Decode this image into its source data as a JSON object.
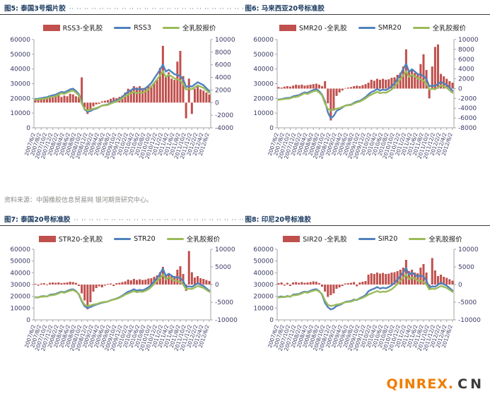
{
  "headers": {
    "fig5": "图5: 泰国3号烟片胶",
    "fig6": "图6: 马来西亚20号标准胶",
    "fig7": "图7: 泰国20号标准胶",
    "fig8": "图8: 印尼20号标准胶",
    "leader": "·· ·· ·· ·· ·· ·· ·· ·· ·· ·· ·· ·· ·· ·· ·· ·· ·· ·· ·· ·· ·· ·· ·· ·· ·· ·· ··"
  },
  "source_note": "资料来源：中国橡胶信息贸易网  银河期货研究中心。",
  "watermark": {
    "brand": "QINREX.",
    "suffix": "CN",
    "brand_color": "#F07D00",
    "suffix_color": "#3a3a3a"
  },
  "colors": {
    "bar": "#C0504D",
    "line_blue": "#4F81BD",
    "line_green": "#9BBB59",
    "title": "#17375D",
    "axis_text": "#3A3A66",
    "axis_line": "#A6A6A6"
  },
  "chart_data": [
    {
      "type": "bar",
      "title": "图5: 泰国3号烟片胶",
      "legend_position": "top",
      "tick_every": 2,
      "x_ticks": [
        "2007/6/2",
        "2007/8/2",
        "2007/10/2",
        "2007/12/2",
        "2008/2/2",
        "2008/4/2",
        "2008/6/2",
        "2008/8/2",
        "2008/10/2",
        "2008/12/2",
        "2009/2/2",
        "2009/4/2",
        "2009/6/2",
        "2009/8/2",
        "2009/10/2",
        "2009/12/2",
        "2010/2/2",
        "2010/4/2",
        "2010/6/2",
        "2010/8/2",
        "2010/10/2",
        "2010/12/2",
        "2011/2/2",
        "2011/4/2",
        "2011/6/2",
        "2011/8/2",
        "2011/10/2",
        "2011/12/2",
        "2012/2/2",
        "2012/4/2",
        "2012/6/2"
      ],
      "left_axis": {
        "min": 0,
        "max": 60000,
        "step": 10000
      },
      "right_axis": {
        "min": -4000,
        "max": 10000,
        "step": 2000
      },
      "series": [
        {
          "name": "RSS3-全乳胶",
          "type": "bar",
          "axis": "right",
          "values": [
            600,
            400,
            500,
            900,
            700,
            800,
            1200,
            1000,
            1200,
            900,
            1100,
            1000,
            1400,
            1300,
            1000,
            900,
            4000,
            -800,
            -1800,
            -1200,
            -600,
            -300,
            -200,
            200,
            300,
            400,
            600,
            800,
            700,
            900,
            1100,
            1600,
            2200,
            2100,
            2600,
            2400,
            2600,
            2300,
            2300,
            2600,
            2700,
            3200,
            3600,
            5500,
            9000,
            4200,
            4800,
            3800,
            3600,
            6500,
            8200,
            4200,
            -2500,
            3800,
            -1800,
            2200,
            2600,
            2100,
            1900,
            1600,
            1300
          ]
        },
        {
          "name": "RSS3",
          "type": "line",
          "axis": "left",
          "values": [
            19600,
            19800,
            20100,
            20500,
            20800,
            21600,
            22100,
            22500,
            23500,
            24400,
            24100,
            25000,
            26100,
            26600,
            25000,
            22900,
            17500,
            12400,
            11000,
            11400,
            12500,
            13000,
            14000,
            15100,
            15500,
            15800,
            17100,
            18000,
            18500,
            19500,
            21000,
            23000,
            24500,
            25500,
            27000,
            25900,
            26500,
            26000,
            27000,
            28500,
            30500,
            33500,
            36500,
            39500,
            43000,
            38200,
            39500,
            38000,
            36400,
            36000,
            35000,
            33000,
            27800,
            28400,
            28000,
            29500,
            31000,
            30000,
            29000,
            27000,
            25000
          ]
        },
        {
          "name": "全乳胶报价",
          "type": "line",
          "axis": "left",
          "values": [
            19000,
            19300,
            19600,
            19800,
            20000,
            20800,
            21000,
            21500,
            22500,
            23500,
            23000,
            24000,
            24800,
            25300,
            24000,
            22000,
            16500,
            12800,
            11800,
            12300,
            13000,
            13400,
            14200,
            15000,
            15300,
            15500,
            16500,
            17300,
            17800,
            18800,
            20000,
            21500,
            22500,
            23500,
            24500,
            23500,
            24000,
            23800,
            24800,
            26000,
            28000,
            30500,
            33000,
            35500,
            38500,
            34500,
            36000,
            35000,
            33500,
            33000,
            32000,
            30000,
            26000,
            26500,
            26200,
            27500,
            28800,
            28000,
            27200,
            25500,
            23800
          ]
        }
      ]
    },
    {
      "type": "bar",
      "title": "图6: 马来西亚20号标准胶",
      "legend_position": "top",
      "tick_every": 2,
      "x_ticks": [
        "2007/6/2",
        "2007/8/2",
        "2007/10/2",
        "2007/12/2",
        "2008/2/2",
        "2008/4/2",
        "2008/6/2",
        "2008/8/2",
        "2008/10/2",
        "2008/12/2",
        "2009/2/2",
        "2009/4/2",
        "2009/6/2",
        "2009/8/2",
        "2009/10/2",
        "2009/12/2",
        "2010/2/2",
        "2010/4/2",
        "2010/6/2",
        "2010/8/2",
        "2010/10/2",
        "2010/12/2",
        "2011/2/2",
        "2011/4/2",
        "2011/6/2",
        "2011/8/2",
        "2011/10/2",
        "2011/12/2",
        "2012/2/2",
        "2012/4/2",
        "2012/6/2"
      ],
      "left_axis": {
        "min": 0,
        "max": 60000,
        "step": 10000
      },
      "right_axis": {
        "min": -8000,
        "max": 10000,
        "step": 2000
      },
      "series": [
        {
          "name": "SMR20 -全乳胶",
          "type": "bar",
          "axis": "right",
          "values": [
            300,
            200,
            400,
            500,
            400,
            600,
            800,
            700,
            800,
            600,
            700,
            800,
            900,
            1000,
            800,
            500,
            1500,
            -3000,
            -6500,
            -4500,
            -1500,
            -800,
            -400,
            100,
            200,
            300,
            500,
            600,
            500,
            700,
            900,
            1200,
            1800,
            1600,
            2000,
            1800,
            2000,
            1800,
            1900,
            2200,
            2300,
            2800,
            3200,
            4500,
            8000,
            3500,
            4000,
            3200,
            3000,
            5000,
            7000,
            3800,
            -2000,
            4500,
            8500,
            9000,
            3000,
            2500,
            2000,
            1500,
            1200
          ]
        },
        {
          "name": "SMR20",
          "type": "line",
          "axis": "left",
          "values": [
            19300,
            19500,
            20000,
            20300,
            20400,
            21400,
            21800,
            22200,
            23300,
            24100,
            23700,
            24800,
            25700,
            26300,
            24800,
            22500,
            18000,
            10500,
            6500,
            8000,
            11500,
            12600,
            13800,
            15100,
            15500,
            15800,
            17000,
            17900,
            18300,
            19500,
            20900,
            22700,
            24300,
            25100,
            26500,
            25300,
            26000,
            25600,
            26700,
            28200,
            30300,
            33300,
            36200,
            40000,
            43500,
            38000,
            39800,
            38200,
            36500,
            36200,
            35200,
            33200,
            28200,
            28700,
            28400,
            29800,
            31200,
            30200,
            29300,
            27200,
            25100
          ]
        },
        {
          "name": "全乳胶报价",
          "type": "line",
          "axis": "left",
          "values": [
            19000,
            19300,
            19600,
            19800,
            20000,
            20800,
            21000,
            21500,
            22500,
            23500,
            23000,
            24000,
            24800,
            25300,
            24000,
            22000,
            16500,
            12800,
            11800,
            12300,
            13000,
            13400,
            14200,
            15000,
            15300,
            15500,
            16500,
            17300,
            17800,
            18800,
            20000,
            21500,
            22500,
            23500,
            24500,
            23500,
            24000,
            23800,
            24800,
            26000,
            28000,
            30500,
            33000,
            35500,
            38500,
            34500,
            36000,
            35000,
            33500,
            33000,
            32000,
            30000,
            26000,
            26500,
            26200,
            27500,
            28800,
            28000,
            27200,
            25500,
            23800
          ]
        }
      ]
    },
    {
      "type": "bar",
      "title": "图7: 泰国20号标准胶",
      "legend_position": "top",
      "tick_every": 2,
      "x_ticks": [
        "2007/6/2",
        "2007/8/2",
        "2007/10/2",
        "2007/12/2",
        "2008/2/2",
        "2008/4/2",
        "2008/6/2",
        "2008/8/2",
        "2008/10/2",
        "2008/12/2",
        "2009/2/2",
        "2009/4/2",
        "2009/6/2",
        "2009/8/2",
        "2009/10/2",
        "2009/12/2",
        "2010/2/2",
        "2010/4/2",
        "2010/6/2",
        "2010/8/2",
        "2010/10/2",
        "2010/12/2",
        "2011/2/2",
        "2011/4/2",
        "2011/6/2",
        "2011/8/2",
        "2011/10/2",
        "2011/12/2",
        "2012/2/2",
        "2012/4/2",
        "2012/6/2"
      ],
      "left_axis": {
        "min": 0,
        "max": 60000,
        "step": 10000
      },
      "right_axis": {
        "min": -10000,
        "max": 10000,
        "step": 5000
      },
      "series": [
        {
          "name": "STR20-全乳胶",
          "type": "bar",
          "axis": "right",
          "values": [
            200,
            -300,
            300,
            400,
            -200,
            500,
            600,
            500,
            600,
            400,
            500,
            600,
            800,
            700,
            500,
            -400,
            -2500,
            -4500,
            -7000,
            -5000,
            -2000,
            -1000,
            -500,
            -800,
            -300,
            200,
            300,
            -400,
            400,
            500,
            700,
            900,
            1400,
            1200,
            1600,
            1300,
            1500,
            1300,
            1400,
            1700,
            1800,
            2200,
            2600,
            3500,
            5000,
            2800,
            3200,
            2600,
            2400,
            4200,
            5200,
            3000,
            -1800,
            9500,
            3500,
            2000,
            2400,
            1800,
            1600,
            1300,
            1000
          ]
        },
        {
          "name": "STR20",
          "type": "line",
          "axis": "left",
          "values": [
            19200,
            19000,
            19900,
            20200,
            19800,
            21300,
            21600,
            22000,
            23100,
            23900,
            23500,
            24600,
            25600,
            26000,
            24500,
            21600,
            15800,
            11500,
            10200,
            10800,
            12100,
            12900,
            13800,
            14600,
            15000,
            15600,
            16700,
            17400,
            18100,
            19200,
            20600,
            22400,
            23900,
            24700,
            26100,
            24800,
            25500,
            25100,
            26200,
            27700,
            29800,
            32700,
            35600,
            39000,
            43500,
            37300,
            39200,
            37600,
            35900,
            36400,
            35400,
            33000,
            27900,
            28500,
            28100,
            29500,
            31200,
            29800,
            28800,
            26800,
            24800
          ]
        },
        {
          "name": "全乳胶报价",
          "type": "line",
          "axis": "left",
          "values": [
            19000,
            19300,
            19600,
            19800,
            20000,
            20800,
            21000,
            21500,
            22500,
            23500,
            23000,
            24000,
            24800,
            25300,
            24000,
            22000,
            16500,
            12800,
            11800,
            12300,
            13000,
            13400,
            14200,
            15000,
            15300,
            15500,
            16500,
            17300,
            17800,
            18800,
            20000,
            21500,
            22500,
            23500,
            24500,
            23500,
            24000,
            23800,
            24800,
            26000,
            28000,
            30500,
            33000,
            35500,
            38500,
            34500,
            36000,
            35000,
            33500,
            33000,
            32000,
            30000,
            26000,
            26500,
            26200,
            27500,
            28800,
            28000,
            27200,
            25500,
            23800
          ]
        }
      ]
    },
    {
      "type": "bar",
      "title": "图8: 印尼20号标准胶",
      "legend_position": "top",
      "tick_every": 2,
      "x_ticks": [
        "2007/6/2",
        "2007/8/2",
        "2007/10/2",
        "2007/12/2",
        "2008/2/2",
        "2008/4/2",
        "2008/6/2",
        "2008/8/2",
        "2008/10/2",
        "2008/12/2",
        "2009/2/2",
        "2009/4/2",
        "2009/6/2",
        "2009/8/2",
        "2009/10/2",
        "2009/12/2",
        "2010/2/2",
        "2010/4/2",
        "2010/6/2",
        "2010/8/2",
        "2010/10/2",
        "2010/12/2",
        "2011/2/2",
        "2011/4/2",
        "2011/6/2",
        "2011/8/2",
        "2011/10/2",
        "2011/12/2",
        "2012/2/2",
        "2012/4/2",
        "2012/6/2"
      ],
      "left_axis": {
        "min": 0,
        "max": 60000,
        "step": 10000
      },
      "right_axis": {
        "min": -10000,
        "max": 10000,
        "step": 5000
      },
      "series": [
        {
          "name": "SIR20 -全乳胶",
          "type": "bar",
          "axis": "right",
          "values": [
            400,
            600,
            -300,
            500,
            -400,
            600,
            700,
            500,
            700,
            500,
            600,
            700,
            900,
            800,
            400,
            -600,
            -2000,
            -3500,
            -3000,
            -2500,
            -1200,
            -800,
            -400,
            300,
            400,
            500,
            700,
            -500,
            600,
            800,
            1000,
            2800,
            3200,
            3000,
            3400,
            3100,
            3300,
            3000,
            3100,
            3400,
            3500,
            3800,
            4200,
            4800,
            7000,
            3800,
            4200,
            3400,
            3200,
            4800,
            5800,
            3400,
            -1500,
            7500,
            4000,
            2400,
            2800,
            2200,
            1900,
            1500,
            1100
          ]
        },
        {
          "name": "SIR20",
          "type": "line",
          "axis": "left",
          "values": [
            19400,
            19900,
            19300,
            20300,
            19600,
            21400,
            21700,
            22000,
            23200,
            24000,
            23600,
            24700,
            25700,
            26100,
            24400,
            21400,
            14500,
            10800,
            8800,
            9800,
            11800,
            12600,
            13800,
            15300,
            15700,
            16000,
            17200,
            16800,
            18400,
            19600,
            21000,
            24300,
            25700,
            26500,
            27900,
            26600,
            27300,
            26800,
            27900,
            29400,
            31500,
            34300,
            37200,
            40300,
            44000,
            38300,
            40200,
            38400,
            36700,
            37800,
            36800,
            33400,
            27500,
            28500,
            28200,
            29900,
            31600,
            30200,
            29100,
            27000,
            24900
          ]
        },
        {
          "name": "全乳胶报价",
          "type": "line",
          "axis": "left",
          "values": [
            19000,
            19300,
            19600,
            19800,
            20000,
            20800,
            21000,
            21500,
            22500,
            23500,
            23000,
            24000,
            24800,
            25300,
            24000,
            22000,
            16500,
            12800,
            11800,
            12300,
            13000,
            13400,
            14200,
            15000,
            15300,
            15500,
            16500,
            17300,
            17800,
            18800,
            20000,
            21500,
            22500,
            23500,
            24500,
            23500,
            24000,
            23800,
            24800,
            26000,
            28000,
            30500,
            33000,
            35500,
            38500,
            34500,
            36000,
            35000,
            33500,
            33000,
            32000,
            30000,
            26000,
            26500,
            26200,
            27500,
            28800,
            28000,
            27200,
            25500,
            23800
          ]
        }
      ]
    }
  ]
}
